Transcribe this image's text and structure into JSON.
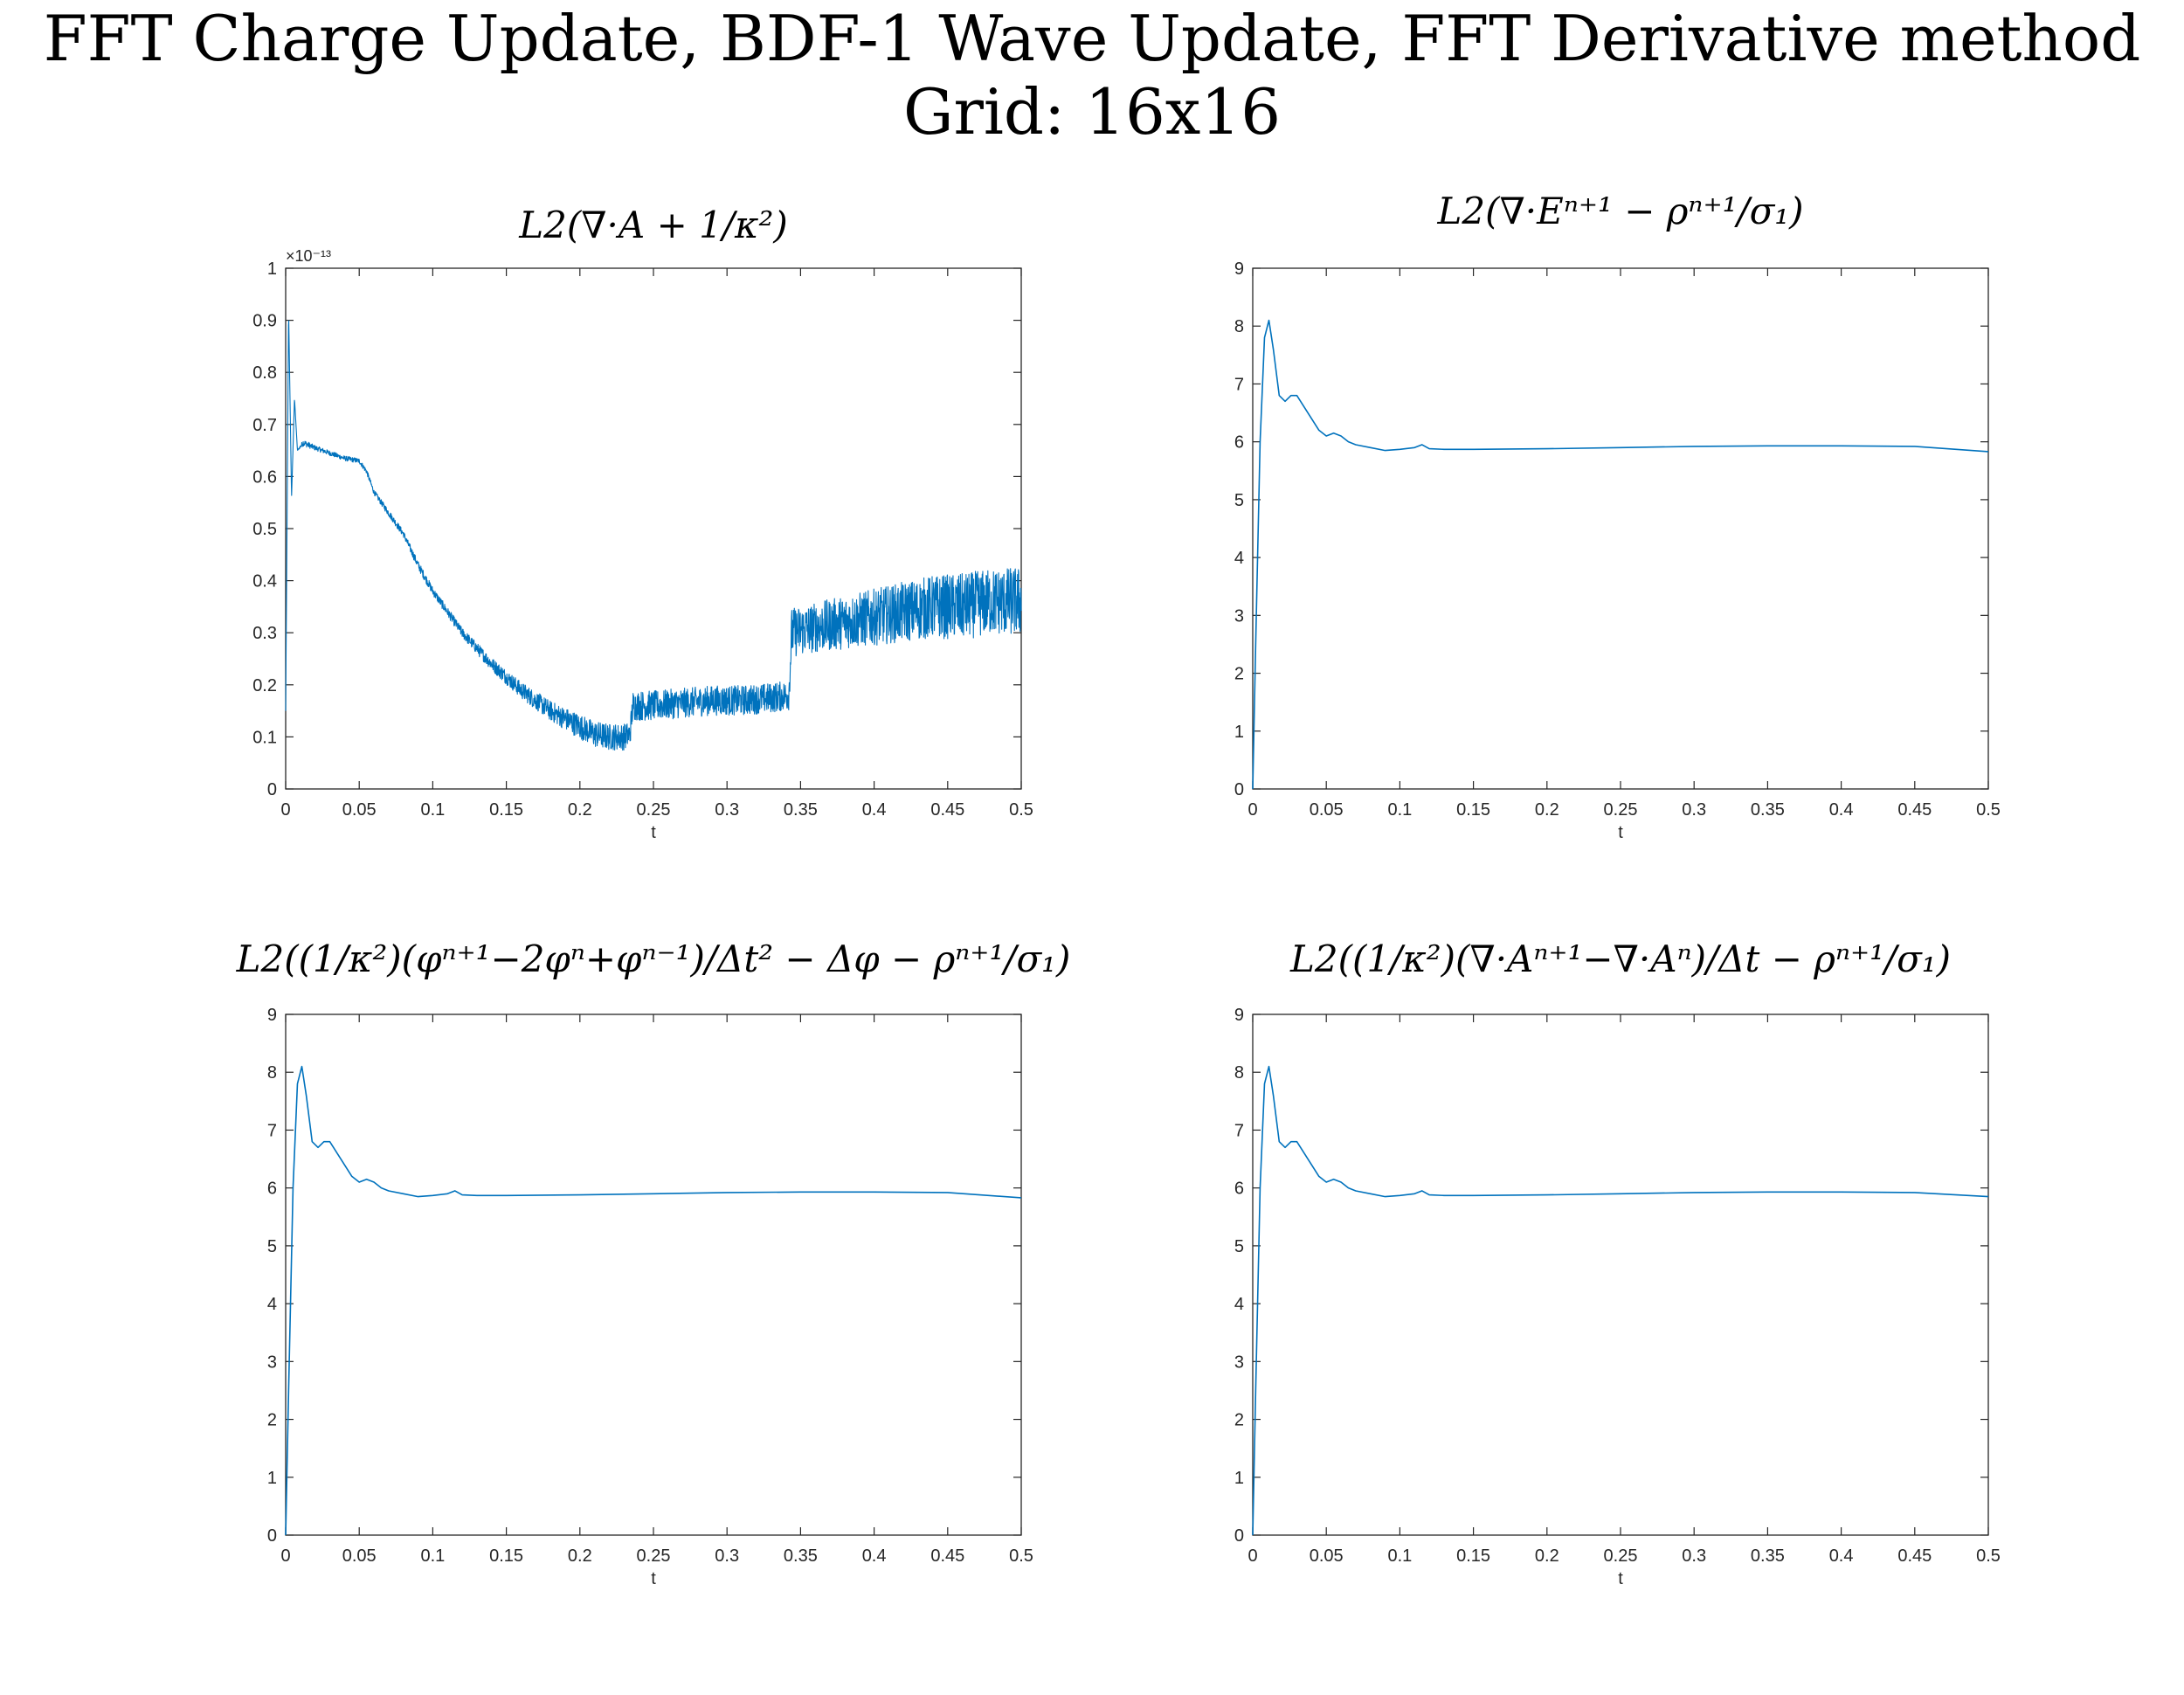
{
  "figure": {
    "title_line1": "FFT Charge Update, BDF-1 Wave Update, FFT Derivative method",
    "title_line2": "Grid: 16x16"
  },
  "chart_data": [
    {
      "type": "line",
      "title": "L2(∇·A + 1/κ²)",
      "xlabel": "t",
      "ylabel": "",
      "xlim": [
        0,
        0.5
      ],
      "ylim": [
        0,
        1
      ],
      "y_exponent_label": "×10⁻¹³",
      "xticks": [
        "0",
        "0.05",
        "0.1",
        "0.15",
        "0.2",
        "0.25",
        "0.3",
        "0.35",
        "0.4",
        "0.45",
        "0.5"
      ],
      "yticks": [
        "0",
        "0.1",
        "0.2",
        "0.3",
        "0.4",
        "0.5",
        "0.6",
        "0.7",
        "0.8",
        "0.9",
        "1"
      ],
      "line_color": "#0072bd",
      "series": [
        {
          "x": [
            0,
            0.002,
            0.004,
            0.006,
            0.008,
            0.012,
            0.02,
            0.03,
            0.04,
            0.05,
            0.055,
            0.06,
            0.07,
            0.08,
            0.09,
            0.1,
            0.12,
            0.14,
            0.16,
            0.18,
            0.2,
            0.21,
            0.22,
            0.23,
            0.234,
            0.236,
            0.25,
            0.27,
            0.29,
            0.31,
            0.33,
            0.342,
            0.344,
            0.36,
            0.38,
            0.4,
            0.42,
            0.44,
            0.46,
            0.48,
            0.5
          ],
          "y": [
            0.15,
            0.92,
            0.56,
            0.75,
            0.65,
            0.665,
            0.655,
            0.645,
            0.635,
            0.63,
            0.61,
            0.57,
            0.53,
            0.49,
            0.43,
            0.38,
            0.3,
            0.24,
            0.19,
            0.15,
            0.12,
            0.105,
            0.1,
            0.1,
            0.105,
            0.16,
            0.16,
            0.165,
            0.17,
            0.17,
            0.175,
            0.18,
            0.3,
            0.31,
            0.32,
            0.33,
            0.34,
            0.35,
            0.35,
            0.36,
            0.36
          ],
          "noise": [
            0,
            0,
            0,
            0,
            0,
            0.004,
            0.003,
            0.003,
            0.003,
            0.003,
            0.003,
            0.003,
            0.004,
            0.004,
            0.005,
            0.005,
            0.006,
            0.008,
            0.01,
            0.012,
            0.015,
            0.016,
            0.016,
            0.016,
            0.015,
            0.018,
            0.018,
            0.018,
            0.018,
            0.018,
            0.018,
            0.018,
            0.03,
            0.03,
            0.032,
            0.034,
            0.036,
            0.038,
            0.04,
            0.04,
            0.042
          ]
        }
      ]
    },
    {
      "type": "line",
      "title": "L2(∇·Eⁿ⁺¹ − ρⁿ⁺¹/σ₁)",
      "xlabel": "t",
      "ylabel": "",
      "xlim": [
        0,
        0.5
      ],
      "ylim": [
        0,
        9
      ],
      "xticks": [
        "0",
        "0.05",
        "0.1",
        "0.15",
        "0.2",
        "0.25",
        "0.3",
        "0.35",
        "0.4",
        "0.45",
        "0.5"
      ],
      "yticks": [
        "0",
        "1",
        "2",
        "3",
        "4",
        "5",
        "6",
        "7",
        "8",
        "9"
      ],
      "line_color": "#0072bd",
      "series": [
        {
          "x": [
            0,
            0.002,
            0.005,
            0.008,
            0.011,
            0.014,
            0.018,
            0.022,
            0.026,
            0.03,
            0.035,
            0.04,
            0.045,
            0.05,
            0.055,
            0.06,
            0.065,
            0.07,
            0.08,
            0.09,
            0.1,
            0.11,
            0.115,
            0.12,
            0.13,
            0.15,
            0.2,
            0.25,
            0.3,
            0.35,
            0.4,
            0.45,
            0.5
          ],
          "y": [
            0,
            2.5,
            6.0,
            7.8,
            8.1,
            7.6,
            6.8,
            6.7,
            6.8,
            6.8,
            6.6,
            6.4,
            6.2,
            6.1,
            6.15,
            6.1,
            6.0,
            5.95,
            5.9,
            5.85,
            5.87,
            5.9,
            5.95,
            5.88,
            5.87,
            5.87,
            5.88,
            5.9,
            5.92,
            5.93,
            5.93,
            5.92,
            5.83
          ]
        }
      ]
    },
    {
      "type": "line",
      "title": "L2((1/κ²)(φⁿ⁺¹−2φⁿ+φⁿ⁻¹)/Δt² − Δφ − ρⁿ⁺¹/σ₁)",
      "xlabel": "t",
      "ylabel": "",
      "xlim": [
        0,
        0.5
      ],
      "ylim": [
        0,
        9
      ],
      "xticks": [
        "0",
        "0.05",
        "0.1",
        "0.15",
        "0.2",
        "0.25",
        "0.3",
        "0.35",
        "0.4",
        "0.45",
        "0.5"
      ],
      "yticks": [
        "0",
        "1",
        "2",
        "3",
        "4",
        "5",
        "6",
        "7",
        "8",
        "9"
      ],
      "line_color": "#0072bd",
      "series": [
        {
          "x": [
            0,
            0.002,
            0.005,
            0.008,
            0.011,
            0.014,
            0.018,
            0.022,
            0.026,
            0.03,
            0.035,
            0.04,
            0.045,
            0.05,
            0.055,
            0.06,
            0.065,
            0.07,
            0.08,
            0.09,
            0.1,
            0.11,
            0.115,
            0.12,
            0.13,
            0.15,
            0.2,
            0.25,
            0.3,
            0.35,
            0.4,
            0.45,
            0.5
          ],
          "y": [
            0,
            2.5,
            6.0,
            7.8,
            8.1,
            7.6,
            6.8,
            6.7,
            6.8,
            6.8,
            6.6,
            6.4,
            6.2,
            6.1,
            6.15,
            6.1,
            6.0,
            5.95,
            5.9,
            5.85,
            5.87,
            5.9,
            5.95,
            5.88,
            5.87,
            5.87,
            5.88,
            5.9,
            5.92,
            5.93,
            5.93,
            5.92,
            5.83
          ]
        }
      ]
    },
    {
      "type": "line",
      "title": "L2((1/κ²)(∇·Aⁿ⁺¹−∇·Aⁿ)/Δt − ρⁿ⁺¹/σ₁)",
      "xlabel": "t",
      "ylabel": "",
      "xlim": [
        0,
        0.5
      ],
      "ylim": [
        0,
        9
      ],
      "xticks": [
        "0",
        "0.05",
        "0.1",
        "0.15",
        "0.2",
        "0.25",
        "0.3",
        "0.35",
        "0.4",
        "0.45",
        "0.5"
      ],
      "yticks": [
        "0",
        "1",
        "2",
        "3",
        "4",
        "5",
        "6",
        "7",
        "8",
        "9"
      ],
      "line_color": "#0072bd",
      "series": [
        {
          "x": [
            0,
            0.002,
            0.005,
            0.008,
            0.011,
            0.014,
            0.018,
            0.022,
            0.026,
            0.03,
            0.035,
            0.04,
            0.045,
            0.05,
            0.055,
            0.06,
            0.065,
            0.07,
            0.08,
            0.09,
            0.1,
            0.11,
            0.115,
            0.12,
            0.13,
            0.15,
            0.2,
            0.25,
            0.3,
            0.35,
            0.4,
            0.45,
            0.5
          ],
          "y": [
            0,
            2.5,
            6.0,
            7.8,
            8.1,
            7.6,
            6.8,
            6.7,
            6.8,
            6.8,
            6.6,
            6.4,
            6.2,
            6.1,
            6.15,
            6.1,
            6.0,
            5.95,
            5.9,
            5.85,
            5.87,
            5.9,
            5.95,
            5.88,
            5.87,
            5.87,
            5.88,
            5.9,
            5.92,
            5.93,
            5.93,
            5.92,
            5.85
          ]
        }
      ]
    }
  ]
}
